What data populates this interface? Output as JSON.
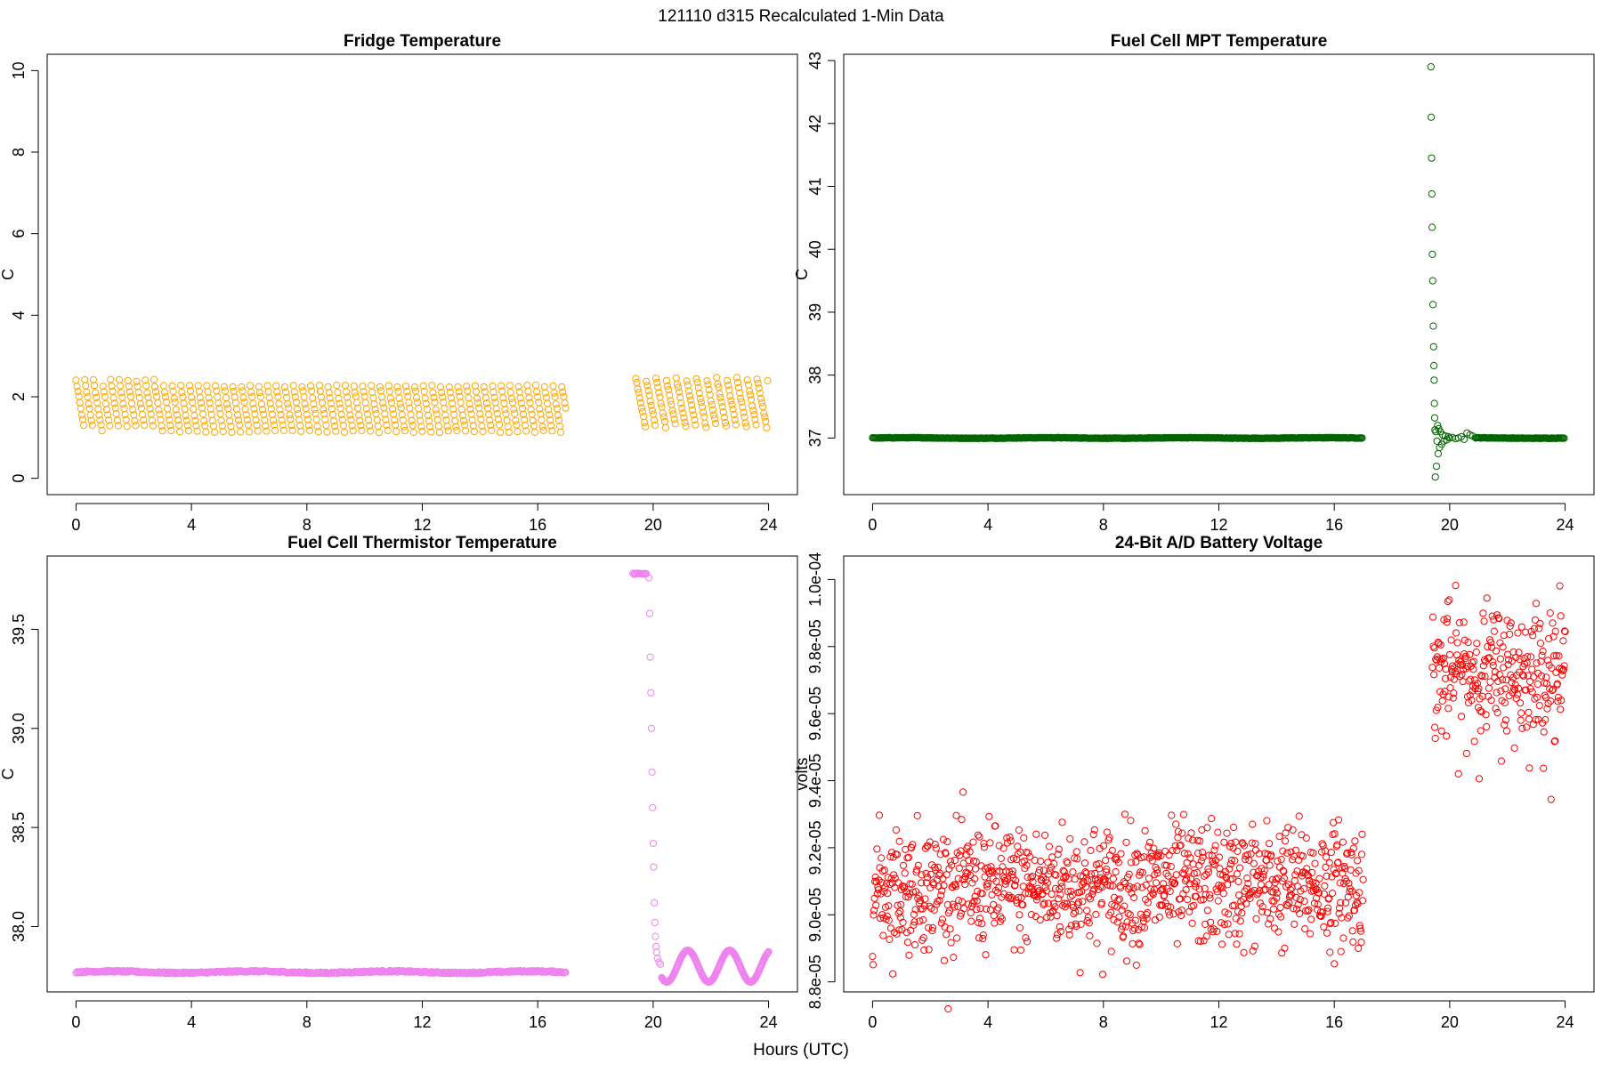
{
  "figure": {
    "suptitle": "121110   d315   Recalculated 1-Min Data",
    "xlabel": "Hours (UTC)"
  },
  "chart_data": [
    {
      "id": "fridge",
      "type": "scatter",
      "title": "Fridge Temperature",
      "xlabel": "",
      "ylabel": "C",
      "color": "#ffa500",
      "xlim": [
        -1,
        25
      ],
      "ylim": [
        -0.4,
        10.4
      ],
      "xticks": [
        0,
        4,
        8,
        12,
        16,
        20,
        24
      ],
      "yticks": [
        0,
        2,
        4,
        6,
        8,
        10
      ],
      "ytick_labels": [
        "0",
        "2",
        "4",
        "6",
        "8",
        "10"
      ],
      "grid": false,
      "series": [
        {
          "name": "fridge_temp",
          "pattern": "sawtooth",
          "segments": [
            {
              "x0": 0.0,
              "x1": 17.0,
              "min": 1.15,
              "max": 2.4,
              "period": 0.3
            },
            {
              "x0": 19.4,
              "x1": 24.0,
              "min": 1.2,
              "max": 2.45,
              "period": 0.35
            }
          ]
        }
      ]
    },
    {
      "id": "mpt",
      "type": "scatter",
      "title": "Fuel Cell MPT Temperature",
      "xlabel": "",
      "ylabel": "C",
      "color": "#006400",
      "xlim": [
        -1,
        25
      ],
      "ylim": [
        36.1,
        43.1
      ],
      "xticks": [
        0,
        4,
        8,
        12,
        16,
        20,
        24
      ],
      "yticks": [
        37,
        38,
        39,
        40,
        41,
        42,
        43
      ],
      "ytick_labels": [
        "37",
        "38",
        "39",
        "40",
        "41",
        "42",
        "43"
      ],
      "grid": false,
      "series": [
        {
          "name": "mpt_baseline",
          "pattern": "flat",
          "segments": [
            {
              "x0": 0.0,
              "x1": 17.0,
              "value": 37.0
            },
            {
              "x0": 20.9,
              "x1": 24.0,
              "value": 37.0
            }
          ]
        },
        {
          "name": "mpt_spike",
          "pattern": "points",
          "x": [
            19.35,
            19.36,
            19.37,
            19.38,
            19.39,
            19.4,
            19.41,
            19.42,
            19.43,
            19.44,
            19.45,
            19.46,
            19.47,
            19.48,
            19.49,
            19.5,
            19.52,
            19.54,
            19.56,
            19.58,
            19.6,
            19.62,
            19.65,
            19.68,
            19.72,
            19.76,
            19.8,
            19.85,
            19.9,
            19.95,
            20.0,
            20.1,
            20.2,
            20.3,
            20.4,
            20.5,
            20.6,
            20.7,
            20.8
          ],
          "y": [
            42.9,
            42.1,
            41.45,
            40.88,
            40.35,
            39.92,
            39.5,
            39.12,
            38.78,
            38.45,
            38.15,
            37.92,
            37.55,
            37.32,
            37.13,
            36.38,
            37.1,
            36.55,
            36.95,
            37.2,
            36.75,
            37.15,
            36.85,
            37.1,
            36.9,
            37.05,
            36.95,
            37.03,
            36.97,
            37.02,
            37.0,
            37.01,
            36.99,
            37.0,
            37.02,
            36.98,
            37.08,
            37.05,
            37.03
          ]
        }
      ]
    },
    {
      "id": "thermistor",
      "type": "scatter",
      "title": "Fuel Cell Thermistor Temperature",
      "xlabel": "",
      "ylabel": "C",
      "color": "#ee82ee",
      "xlim": [
        -1,
        25
      ],
      "ylim": [
        37.67,
        39.87
      ],
      "xticks": [
        0,
        4,
        8,
        12,
        16,
        20,
        24
      ],
      "yticks": [
        38.0,
        38.5,
        39.0,
        39.5
      ],
      "ytick_labels": [
        "38.0",
        "38.5",
        "39.0",
        "39.5"
      ],
      "grid": false,
      "series": [
        {
          "name": "thermistor_flat",
          "pattern": "flat",
          "segments": [
            {
              "x0": 0.0,
              "x1": 17.0,
              "value": 37.77
            }
          ]
        },
        {
          "name": "thermistor_plateau",
          "pattern": "flat",
          "segments": [
            {
              "x0": 19.3,
              "x1": 19.8,
              "value": 39.78
            }
          ]
        },
        {
          "name": "thermistor_drop",
          "pattern": "points",
          "x": [
            19.85,
            19.88,
            19.9,
            19.92,
            19.94,
            19.96,
            19.98,
            20.0,
            20.02,
            20.04,
            20.06,
            20.08,
            20.1,
            20.12,
            20.15,
            20.2,
            20.25
          ],
          "y": [
            39.76,
            39.58,
            39.36,
            39.18,
            39.0,
            38.78,
            38.6,
            38.42,
            38.3,
            38.12,
            38.02,
            37.95,
            37.9,
            37.87,
            37.84,
            37.82,
            37.81
          ]
        },
        {
          "name": "thermistor_oscillation",
          "pattern": "damped",
          "segments": [
            {
              "x0": 20.3,
              "x1": 24.0,
              "center": 37.8,
              "amplitude": 0.08,
              "period": 1.45
            }
          ]
        }
      ]
    },
    {
      "id": "battery",
      "type": "scatter",
      "title": "24-Bit A/D Battery Voltage",
      "xlabel": "",
      "ylabel": "volts",
      "color": "#ff0000",
      "xlim": [
        -1,
        25
      ],
      "ylim": [
        8.77e-05,
        0.0001007
      ],
      "xticks": [
        0,
        4,
        8,
        12,
        16,
        20,
        24
      ],
      "yticks": [
        8.8e-05,
        9e-05,
        9.2e-05,
        9.4e-05,
        9.6e-05,
        9.8e-05,
        0.0001
      ],
      "ytick_labels": [
        "8.8e-05",
        "9.0e-05",
        "9.2e-05",
        "9.4e-05",
        "9.6e-05",
        "9.8e-05",
        "1.0e-04"
      ],
      "grid": false,
      "series": [
        {
          "name": "battery_noise",
          "pattern": "noise",
          "segments": [
            {
              "x0": 0.0,
              "x1": 17.0,
              "mean": 9.08e-05,
              "sd": 9e-07,
              "trend": 1e-07,
              "count": 1020
            },
            {
              "x0": 19.4,
              "x1": 24.0,
              "mean": 9.72e-05,
              "sd": 1e-06,
              "trend": 0.0,
              "count": 276
            }
          ]
        }
      ]
    }
  ]
}
